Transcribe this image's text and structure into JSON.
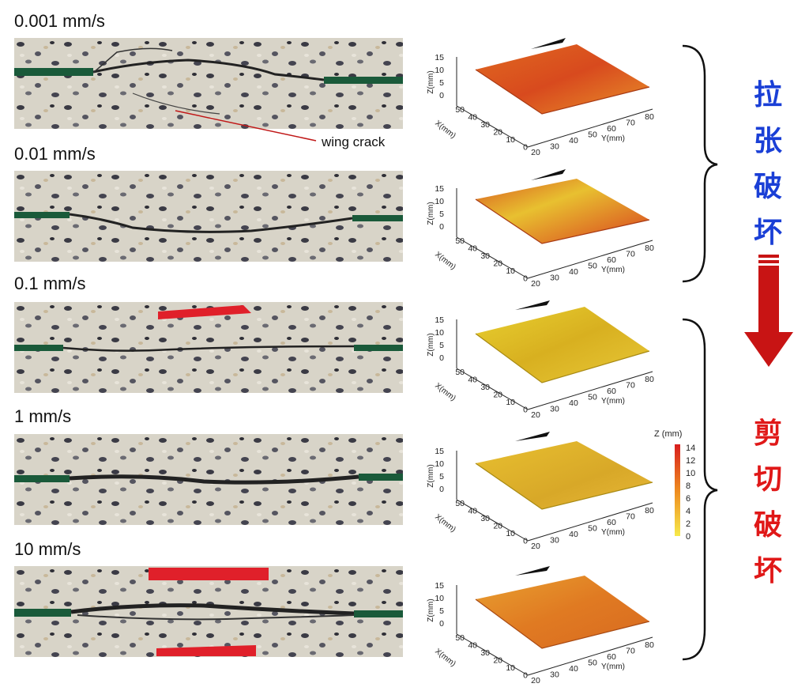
{
  "rates": [
    {
      "label": "0.001 mm/s"
    },
    {
      "label": "0.01 mm/s"
    },
    {
      "label": "0.1 mm/s"
    },
    {
      "label": "1 mm/s"
    },
    {
      "label": "10 mm/s"
    }
  ],
  "annotation": {
    "wing_crack": "wing crack"
  },
  "surface_axes": {
    "z_label": "Z(mm)",
    "x_label": "X(mm)",
    "y_label": "Y(mm)",
    "z_ticks": [
      "15",
      "10",
      "5",
      "0"
    ],
    "x_ticks": [
      "0",
      "10",
      "20",
      "30",
      "40",
      "50"
    ],
    "y_ticks": [
      "20",
      "30",
      "40",
      "50",
      "60",
      "70",
      "80"
    ]
  },
  "colorbar": {
    "title": "Z (mm)",
    "ticks": [
      "14",
      "12",
      "10",
      "8",
      "6",
      "4",
      "2",
      "0"
    ],
    "colors": {
      "high": "#d81e1e",
      "mid": "#ee8a1f",
      "low": "#f6e94a"
    }
  },
  "modes": {
    "tensile": {
      "chars": [
        "拉",
        "张",
        "破",
        "坏"
      ],
      "color": "#1a3fd6"
    },
    "shear": {
      "chars": [
        "剪",
        "切",
        "破",
        "坏"
      ],
      "color": "#e01818"
    }
  }
}
